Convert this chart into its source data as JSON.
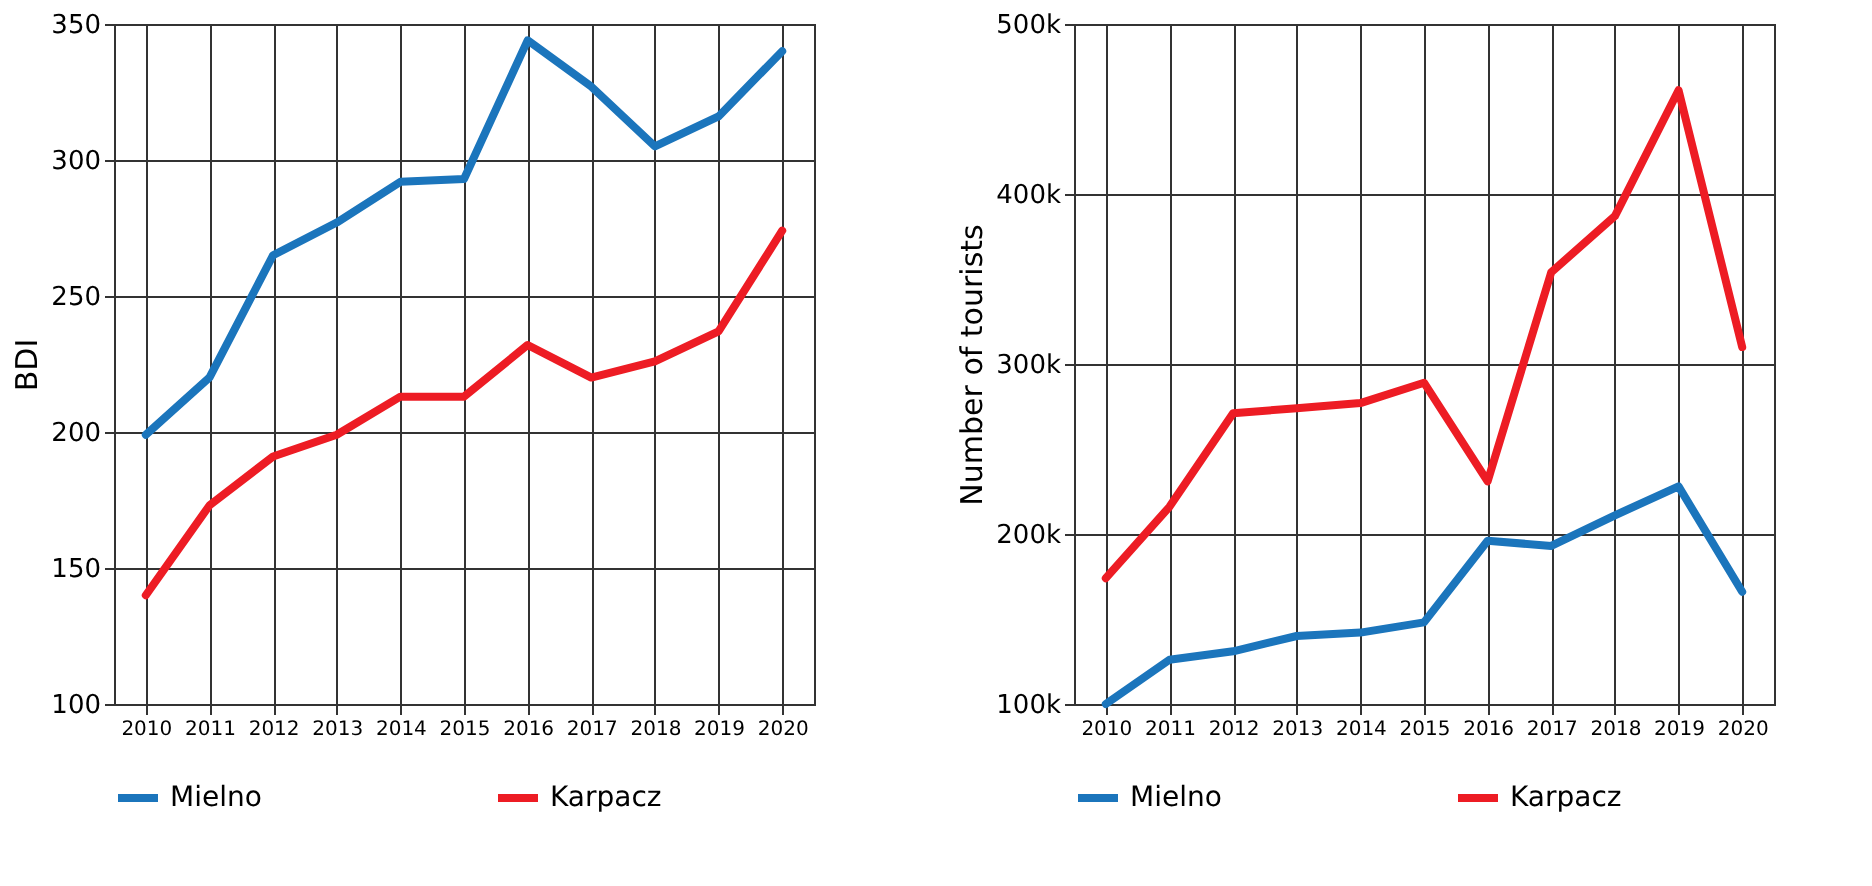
{
  "chart_data": [
    {
      "type": "line",
      "ylabel": "BDI",
      "x": [
        2010,
        2011,
        2012,
        2013,
        2014,
        2015,
        2016,
        2017,
        2018,
        2019,
        2020
      ],
      "xlim": [
        2009.5,
        2020.5
      ],
      "xticks": [
        2010,
        2011,
        2012,
        2013,
        2014,
        2015,
        2016,
        2017,
        2018,
        2019,
        2020
      ],
      "ylim": [
        100,
        350
      ],
      "yticks": [
        100,
        150,
        200,
        250,
        300,
        350
      ],
      "grid": true,
      "legend": "bottom",
      "marker": "none",
      "line_style": "solid",
      "series": [
        {
          "name": "Mielno",
          "color": "#1b75bc",
          "values": [
            199,
            220,
            265,
            277,
            292,
            293,
            344,
            327,
            305,
            316,
            340
          ]
        },
        {
          "name": "Karpacz",
          "color": "#ed1c24",
          "values": [
            140,
            173,
            191,
            199,
            213,
            213,
            232,
            220,
            226,
            237,
            274
          ]
        }
      ]
    },
    {
      "type": "line",
      "ylabel": "Number of tourists",
      "x": [
        2010,
        2011,
        2012,
        2013,
        2014,
        2015,
        2016,
        2017,
        2018,
        2019,
        2020
      ],
      "xlim": [
        2009.5,
        2020.5
      ],
      "xticks": [
        2010,
        2011,
        2012,
        2013,
        2014,
        2015,
        2016,
        2017,
        2018,
        2019,
        2020
      ],
      "ylim": [
        100000,
        500000
      ],
      "yticks": [
        {
          "value": 100000,
          "label": "100k"
        },
        {
          "value": 200000,
          "label": "200k"
        },
        {
          "value": 300000,
          "label": "300k"
        },
        {
          "value": 400000,
          "label": "400k"
        },
        {
          "value": 500000,
          "label": "500k"
        }
      ],
      "grid": true,
      "legend": "bottom",
      "marker": "none",
      "line_style": "solid",
      "series": [
        {
          "name": "Mielno",
          "color": "#1b75bc",
          "values": [
            100000,
            126000,
            131000,
            140000,
            142000,
            148000,
            196000,
            193000,
            211000,
            228000,
            166000
          ]
        },
        {
          "name": "Karpacz",
          "color": "#ed1c24",
          "values": [
            174000,
            216000,
            271000,
            274000,
            277000,
            289000,
            231000,
            354000,
            387000,
            461000,
            310000
          ]
        }
      ]
    }
  ]
}
